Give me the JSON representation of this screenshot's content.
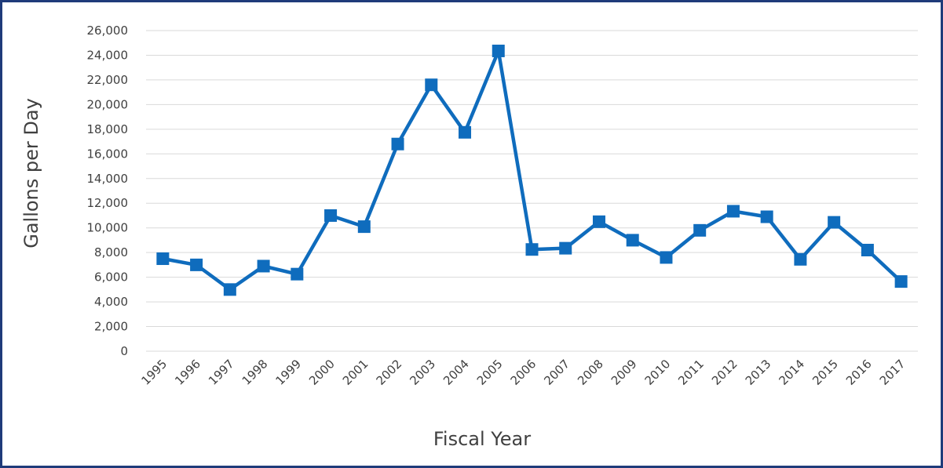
{
  "chart_data": {
    "type": "line",
    "title": "",
    "xlabel": "Fiscal Year",
    "ylabel": "Gallons per Day",
    "categories": [
      "1995",
      "1996",
      "1997",
      "1998",
      "1999",
      "2000",
      "2001",
      "2002",
      "2003",
      "2004",
      "2005",
      "2006",
      "2007",
      "2008",
      "2009",
      "2010",
      "2011",
      "2012",
      "2013",
      "2014",
      "2015",
      "2016",
      "2017"
    ],
    "series": [
      {
        "values": [
          7500,
          7000,
          5000,
          6900,
          6250,
          11000,
          10100,
          16800,
          21600,
          17750,
          24350,
          8250,
          8350,
          10500,
          9000,
          7600,
          9800,
          11350,
          10900,
          7450,
          10450,
          8200,
          5650
        ]
      }
    ],
    "ylim": [
      0,
      26000
    ],
    "yticks": [
      0,
      2000,
      4000,
      6000,
      8000,
      10000,
      12000,
      14000,
      16000,
      18000,
      20000,
      22000,
      24000,
      26000
    ],
    "ytick_labels": [
      "0",
      "2,000",
      "4,000",
      "6,000",
      "8,000",
      "10,000",
      "12,000",
      "14,000",
      "16,000",
      "18,000",
      "20,000",
      "22,000",
      "24,000",
      "26,000"
    ],
    "grid": true,
    "legend": "none",
    "line_color": "#0f6cbd",
    "grid_color": "#d9d9d9"
  }
}
